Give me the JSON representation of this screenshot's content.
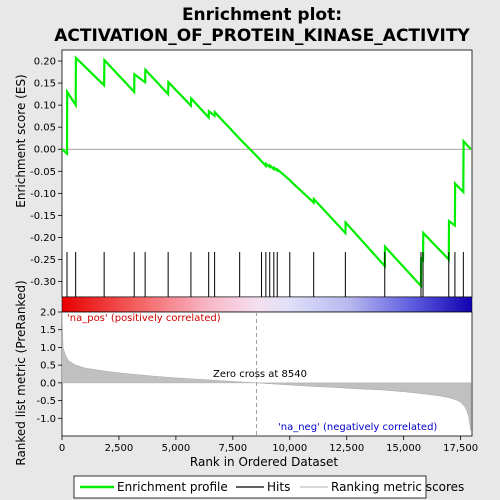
{
  "chart_data": {
    "type": "line",
    "title_line1": "Enrichment plot:",
    "title_line2": "ACTIVATION_OF_PROTEIN_KINASE_ACTIVITY",
    "top_panel": {
      "ylabel": "Enrichment score (ES)",
      "ylim": [
        -0.335,
        0.225
      ],
      "yticks": [
        "0.20",
        "0.15",
        "0.10",
        "0.05",
        "0.00",
        "-0.05",
        "-0.10",
        "-0.15",
        "-0.20",
        "-0.25",
        "-0.30"
      ],
      "ytick_values": [
        0.2,
        0.15,
        0.1,
        0.05,
        0.0,
        -0.05,
        -0.1,
        -0.15,
        -0.2,
        -0.25,
        -0.3
      ],
      "series": [
        {
          "name": "Enrichment profile",
          "color": "#00ee00",
          "x": [
            0,
            220,
            230,
            600,
            610,
            1850,
            1860,
            3170,
            3180,
            3650,
            3660,
            4660,
            4670,
            5660,
            5670,
            6440,
            6450,
            6700,
            6710,
            7800,
            8540,
            8950,
            8960,
            9120,
            9130,
            9300,
            9310,
            9450,
            9460,
            10000,
            10010,
            11050,
            11060,
            12440,
            12450,
            14170,
            14180,
            15760,
            15770,
            15850,
            15860,
            16980,
            16990,
            17250,
            17260,
            17620,
            17630,
            17950
          ],
          "y": [
            0.0,
            -0.01,
            0.13,
            0.1,
            0.207,
            0.145,
            0.202,
            0.13,
            0.17,
            0.152,
            0.18,
            0.125,
            0.152,
            0.099,
            0.115,
            0.072,
            0.086,
            0.076,
            0.084,
            0.024,
            -0.015,
            -0.038,
            -0.033,
            -0.04,
            -0.037,
            -0.045,
            -0.042,
            -0.048,
            -0.046,
            -0.07,
            -0.071,
            -0.121,
            -0.113,
            -0.19,
            -0.166,
            -0.265,
            -0.221,
            -0.31,
            -0.245,
            -0.255,
            -0.19,
            -0.25,
            -0.163,
            -0.173,
            -0.078,
            -0.097,
            0.018,
            0.0
          ]
        }
      ],
      "hits_x": [
        220,
        600,
        1850,
        3170,
        3650,
        4660,
        5660,
        6440,
        6700,
        7800,
        8760,
        8950,
        9120,
        9300,
        9450,
        10000,
        11050,
        12440,
        14170,
        15760,
        15850,
        16980,
        17250,
        17620
      ]
    },
    "bottom_panel": {
      "ylabel": "Ranked list metric (PreRanked)",
      "xlabel": "Rank in Ordered Dataset",
      "ylim": [
        -1.5,
        2.0
      ],
      "yticks": [
        "2.0",
        "1.5",
        "1.0",
        "0.5",
        "0.0",
        "-0.5",
        "-1.0"
      ],
      "ytick_values": [
        2.0,
        1.5,
        1.0,
        0.5,
        0.0,
        -0.5,
        -1.0
      ],
      "xlim": [
        0,
        18000
      ],
      "xticks": [
        "0",
        "2,500",
        "5,000",
        "7,500",
        "10,000",
        "12,500",
        "15,000",
        "17,500"
      ],
      "xtick_values": [
        0,
        2500,
        5000,
        7500,
        10000,
        12500,
        15000,
        17500
      ],
      "zero_cross": 8540,
      "metric_curve": {
        "x": [
          0,
          50,
          150,
          300,
          600,
          1000,
          2000,
          3000,
          4000,
          5000,
          6000,
          7000,
          8000,
          8540,
          9000,
          10000,
          11000,
          12000,
          13000,
          14000,
          15000,
          16000,
          16500,
          17000,
          17300,
          17500,
          17650,
          17750,
          17850,
          17950
        ],
        "y": [
          2.0,
          1.0,
          0.78,
          0.62,
          0.5,
          0.42,
          0.32,
          0.25,
          0.19,
          0.14,
          0.1,
          0.06,
          0.02,
          0.0,
          -0.02,
          -0.06,
          -0.1,
          -0.13,
          -0.17,
          -0.2,
          -0.25,
          -0.32,
          -0.36,
          -0.42,
          -0.48,
          -0.55,
          -0.65,
          -0.75,
          -0.95,
          -1.35
        ]
      },
      "annotations": {
        "pos": "'na_pos' (positively correlated)",
        "neg": "'na_neg' (negatively correlated)",
        "zero": "Zero cross at 8540",
        "pos_color": "#cc0000",
        "neg_color": "#0000cc"
      }
    },
    "legend": [
      {
        "label": "Enrichment profile",
        "color": "#00ee00"
      },
      {
        "label": "Hits",
        "color": "#000000"
      },
      {
        "label": "Ranking metric scores",
        "color": "#c0c0c0"
      }
    ]
  }
}
